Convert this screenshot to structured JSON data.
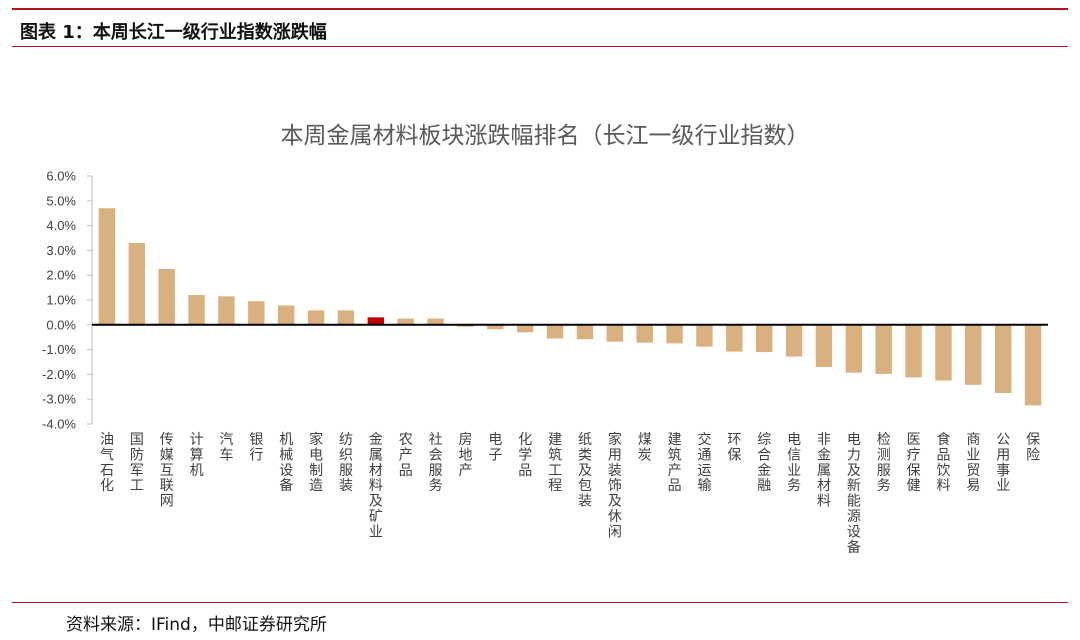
{
  "figure_header": "图表 1：本周长江一级行业指数涨跌幅",
  "source_note": "资料来源：IFind，中邮证券研究所",
  "colors": {
    "bar": "#d9b07f",
    "highlight": "#c00000",
    "rule": "#b4121d",
    "axis": "#000000"
  },
  "chart_data": {
    "type": "bar",
    "title": "本周金属材料板块涨跌幅排名（长江一级行业指数）",
    "xlabel": "",
    "ylabel": "",
    "ylim": [
      -4.0,
      6.0
    ],
    "ytick_step": 1.0,
    "ytick_format": "percent_1dp",
    "grid": false,
    "legend": "none",
    "highlight_category": "金属材料及矿业",
    "categories": [
      "油气石化",
      "国防军工",
      "传媒互联网",
      "计算机",
      "汽车",
      "银行",
      "机械设备",
      "家电制造",
      "纺织服装",
      "金属材料及矿业",
      "农产品",
      "社会服务",
      "房地产",
      "电子",
      "化学品",
      "建筑工程",
      "纸类及包装",
      "家用装饰及休闲",
      "煤炭",
      "建筑产品",
      "交通运输",
      "环保",
      "综合金融",
      "电信业务",
      "非金属材料",
      "电力及新能源设备",
      "检测服务",
      "医疗保健",
      "食品饮料",
      "商业贸易",
      "公用事业",
      "保险"
    ],
    "values": [
      4.7,
      3.3,
      2.25,
      1.2,
      1.15,
      0.95,
      0.78,
      0.58,
      0.58,
      0.3,
      0.25,
      0.25,
      -0.08,
      -0.18,
      -0.3,
      -0.55,
      -0.58,
      -0.68,
      -0.72,
      -0.75,
      -0.88,
      -1.08,
      -1.1,
      -1.28,
      -1.7,
      -1.93,
      -1.98,
      -2.12,
      -2.25,
      -2.42,
      -2.75,
      -3.25
    ]
  }
}
